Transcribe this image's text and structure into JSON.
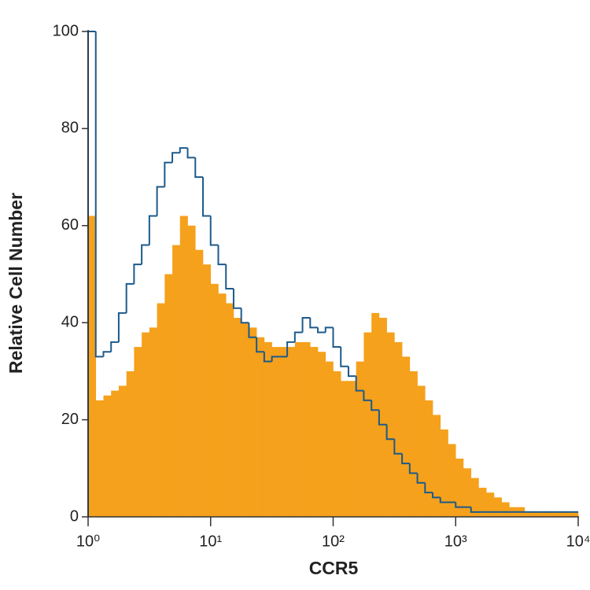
{
  "chart_data": {
    "type": "histogram",
    "x_label": "CCR5",
    "y_label": "Relative Cell Number",
    "x_log": true,
    "bins": [
      1,
      1.155,
      1.334,
      1.54,
      1.778,
      2.054,
      2.371,
      2.738,
      3.162,
      3.652,
      4.217,
      4.87,
      5.623,
      6.494,
      7.499,
      8.66,
      10,
      11.55,
      13.34,
      15.4,
      17.78,
      20.54,
      23.71,
      27.38,
      31.62,
      36.52,
      42.17,
      48.7,
      56.23,
      64.94,
      74.99,
      86.6,
      100,
      115.5,
      133.4,
      154.0,
      177.8,
      205.4,
      237.1,
      273.8,
      316.2,
      365.2,
      421.7,
      487.0,
      562.3,
      649.4,
      749.9,
      866.0,
      1000,
      1155,
      1334,
      1540,
      1778,
      2054,
      2371,
      2738,
      3162,
      3652,
      4217,
      4870,
      5623,
      6494,
      7499,
      8660,
      10000
    ],
    "series": [
      {
        "color": "#f5a11c",
        "fill": true,
        "values": [
          62,
          24,
          25,
          26,
          27,
          30,
          35,
          38,
          39,
          44,
          50,
          56,
          62,
          60,
          55,
          52,
          48,
          46,
          44,
          41,
          40,
          39,
          37,
          36,
          35,
          35,
          35,
          36,
          36,
          35,
          34,
          32,
          30,
          28,
          28,
          32,
          38,
          42,
          41,
          38,
          36,
          33,
          30,
          27,
          24,
          21,
          18,
          15,
          12,
          10,
          8,
          6,
          5,
          4,
          3,
          2,
          2,
          1,
          1,
          1,
          1,
          1,
          1,
          1
        ]
      },
      {
        "color": "#1d5a8a",
        "fill": false,
        "values": [
          100,
          33,
          34,
          36,
          42,
          48,
          52,
          56,
          62,
          68,
          73,
          75,
          76,
          74,
          70,
          62,
          56,
          52,
          47,
          43,
          40,
          37,
          34,
          32,
          33,
          33,
          36,
          38,
          41,
          39,
          38,
          39,
          35,
          31,
          29,
          26,
          24,
          22,
          19,
          16,
          13,
          11,
          9,
          7,
          5,
          4,
          3,
          3,
          2,
          2,
          1,
          1,
          1,
          1,
          1,
          1,
          1,
          1,
          1,
          1,
          1,
          1,
          1,
          1
        ]
      }
    ],
    "xlim": [
      1,
      10000
    ],
    "xticks": [
      {
        "value": 1,
        "label": "10⁰"
      },
      {
        "value": 10,
        "label": "10¹"
      },
      {
        "value": 100,
        "label": "10²"
      },
      {
        "value": 1000,
        "label": "10³"
      },
      {
        "value": 10000,
        "label": "10⁴"
      }
    ],
    "ylim": [
      0,
      100
    ],
    "yticks": [
      0,
      20,
      40,
      60,
      80,
      100
    ]
  }
}
